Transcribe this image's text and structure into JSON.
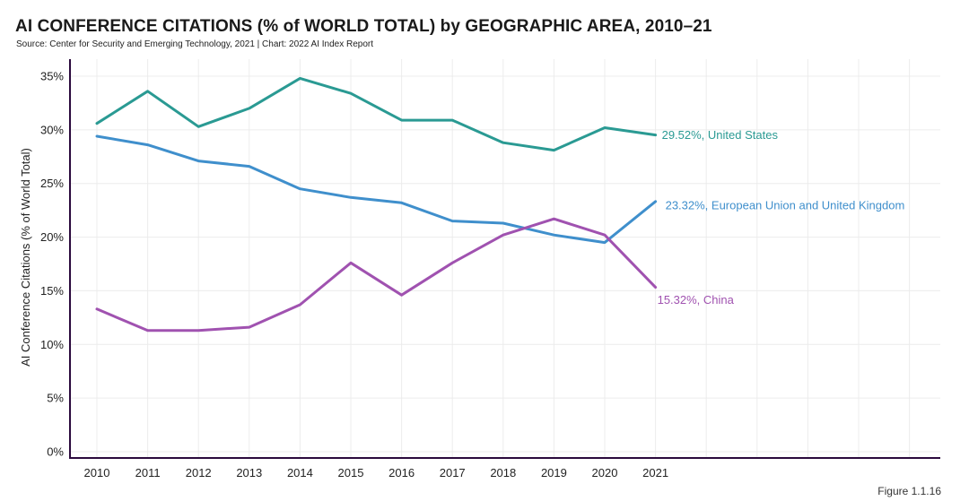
{
  "header": {
    "title": "AI CONFERENCE CITATIONS (% of WORLD TOTAL) by GEOGRAPHIC AREA, 2010–21",
    "source": "Source: Center for Security and Emerging Technology, 2021 | Chart: 2022 AI Index Report"
  },
  "footer": {
    "figure_label": "Figure 1.1.16"
  },
  "chart_data": {
    "type": "line",
    "title": "AI CONFERENCE CITATIONS (% of WORLD TOTAL) by GEOGRAPHIC AREA, 2010–21",
    "xlabel": "",
    "ylabel": "AI Conference Citations (% of World Total)",
    "x": [
      "2010",
      "2011",
      "2012",
      "2013",
      "2014",
      "2015",
      "2016",
      "2017",
      "2018",
      "2019",
      "2020",
      "2021"
    ],
    "ylim": [
      0,
      35
    ],
    "y_ticks": [
      "0%",
      "5%",
      "10%",
      "15%",
      "20%",
      "25%",
      "30%",
      "35%"
    ],
    "grid": true,
    "legend": "none",
    "series": [
      {
        "name": "United States",
        "end_label": "29.52%, United States",
        "color": "#2a9a93",
        "values": [
          30.6,
          33.6,
          30.3,
          32.0,
          34.8,
          33.4,
          30.9,
          30.9,
          28.8,
          28.1,
          30.2,
          29.52
        ]
      },
      {
        "name": "European Union and United Kingdom",
        "end_label": "23.32%, European Union and United Kingdom",
        "color": "#3f8fcc",
        "values": [
          29.4,
          28.6,
          27.1,
          26.6,
          24.5,
          23.7,
          23.2,
          21.5,
          21.3,
          20.2,
          19.5,
          23.32
        ]
      },
      {
        "name": "China",
        "end_label": "15.32%, China",
        "color": "#a052b0",
        "values": [
          13.3,
          11.3,
          11.3,
          11.6,
          13.7,
          17.6,
          14.6,
          17.6,
          20.2,
          21.7,
          20.2,
          15.32
        ]
      }
    ]
  }
}
